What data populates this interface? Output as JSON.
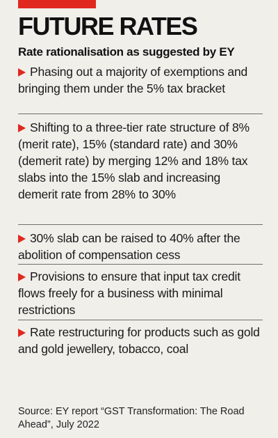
{
  "headline": "FUTURE RATES",
  "subheadline": "Rate rationalisation as suggested by EY",
  "colors": {
    "accent": "#e0281f",
    "background": "#f0efea"
  },
  "bullet_icon": "red-triangle-arrow-icon",
  "points": [
    {
      "text": "Phasing out a majority of exemptions and bringing them under the 5% tax bracket"
    },
    {
      "text": "Shifting to a three-tier rate structure of 8% (merit rate), 15% (standard rate) and 30% (demerit rate) by merging 12% and 18% tax slabs into the 15% slab and increasing demerit rate from 28% to 30%"
    },
    {
      "text": "30% slab can be raised to 40% after the abolition of compensation cess"
    },
    {
      "text": "Provisions to ensure that input tax credit flows freely for a business with minimal restrictions"
    },
    {
      "text": "Rate restructuring for products such as gold and gold jewellery, tobacco, coal"
    }
  ],
  "source": "Source: EY report “GST Transformation: The Road Ahead”, July 2022"
}
